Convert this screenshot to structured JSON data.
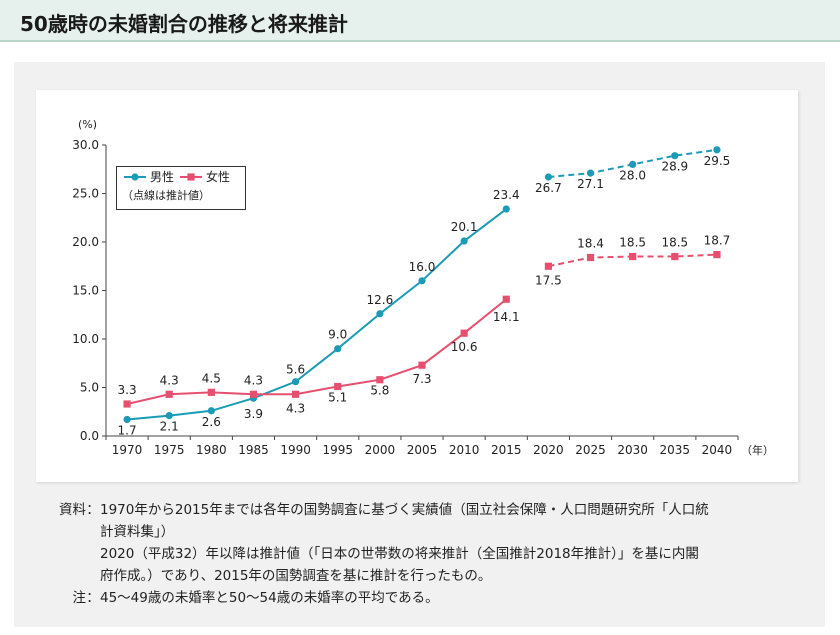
{
  "page": {
    "title": "50歳時の未婚割合の推移と将来推計"
  },
  "chart_data": {
    "type": "line",
    "title": "",
    "y_unit_label": "(%)",
    "x_unit_label": "（年）",
    "ylim": [
      0,
      30
    ],
    "y_ticks": [
      "0.0",
      "5.0",
      "10.0",
      "15.0",
      "20.0",
      "25.0",
      "30.0"
    ],
    "categories": [
      "1970",
      "1975",
      "1980",
      "1985",
      "1990",
      "1995",
      "2000",
      "2005",
      "2010",
      "2015",
      "2020",
      "2025",
      "2030",
      "2035",
      "2040"
    ],
    "grid": false,
    "legend_position": "top-left",
    "legend_note": "（点線は推計値）",
    "series": [
      {
        "name": "男性",
        "color": "#1b9bb6",
        "marker": "circle",
        "actual": [
          1.7,
          2.1,
          2.6,
          3.9,
          5.6,
          9.0,
          12.6,
          16.0,
          20.1,
          23.4
        ],
        "projected": [
          26.7,
          27.1,
          28.0,
          28.9,
          29.5
        ],
        "labels": [
          "1.7",
          "2.1",
          "2.6",
          "3.9",
          "5.6",
          "9.0",
          "12.6",
          "16.0",
          "20.1",
          "23.4",
          "26.7",
          "27.1",
          "28.0",
          "28.9",
          "29.5"
        ]
      },
      {
        "name": "女性",
        "color": "#e6506e",
        "marker": "square",
        "actual": [
          3.3,
          4.3,
          4.5,
          4.3,
          4.3,
          5.1,
          5.8,
          7.3,
          10.6,
          14.1
        ],
        "projected": [
          17.5,
          18.4,
          18.5,
          18.5,
          18.7
        ],
        "labels": [
          "3.3",
          "4.3",
          "4.5",
          "4.3",
          "4.3",
          "5.1",
          "5.8",
          "7.3",
          "10.6",
          "14.1",
          "17.5",
          "18.4",
          "18.5",
          "18.5",
          "18.7"
        ]
      }
    ]
  },
  "notes": {
    "source_label": "資料",
    "source_lines": [
      "1970年から2015年までは各年の国勢調査に基づく実績値（国立社会保障・人口問題研究所「人口統",
      "計資料集」）",
      "2020（平成32）年以降は推計値（「日本の世帯数の将来推計（全国推計2018年推計）」を基に内閣",
      "府作成。）であり、2015年の国勢調査を基に推計を行ったもの。"
    ],
    "note_label": "注",
    "note_text": "45～49歳の未婚率と50～54歳の未婚率の平均である。"
  }
}
